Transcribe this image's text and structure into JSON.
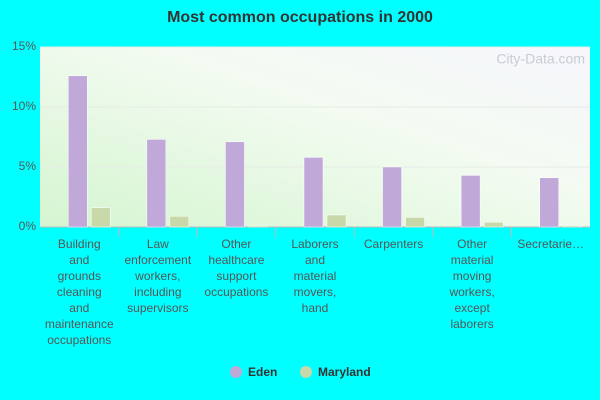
{
  "chart_data": {
    "type": "bar",
    "title": "Most common occupations in 2000",
    "watermark": "City-Data.com",
    "categories": [
      "Building\nand\ngrounds\ncleaning\nand\nmaintenance\noccupations",
      "Law\nenforcement\nworkers,\nincluding\nsupervisors",
      "Other\nhealthcare\nsupport\noccupations",
      "Laborers\nand\nmaterial\nmovers,\nhand",
      "Carpenters",
      "Other\nmaterial\nmoving\nworkers,\nexcept\nlaborers",
      "Secretarie…"
    ],
    "series": [
      {
        "name": "Eden",
        "color": "#c0a8d8",
        "values": [
          12.6,
          7.3,
          7.1,
          5.8,
          5.0,
          4.3,
          4.1
        ]
      },
      {
        "name": "Maryland",
        "color": "#c8d8a8",
        "values": [
          1.6,
          0.9,
          0.1,
          1.0,
          0.8,
          0.4,
          0.1
        ]
      }
    ],
    "ylim": [
      0,
      15
    ],
    "yticks": [
      {
        "value": 0,
        "label": "0%"
      },
      {
        "value": 5,
        "label": "5%"
      },
      {
        "value": 10,
        "label": "10%"
      },
      {
        "value": 15,
        "label": "15%"
      }
    ],
    "grid": true,
    "legend": "bottom"
  }
}
